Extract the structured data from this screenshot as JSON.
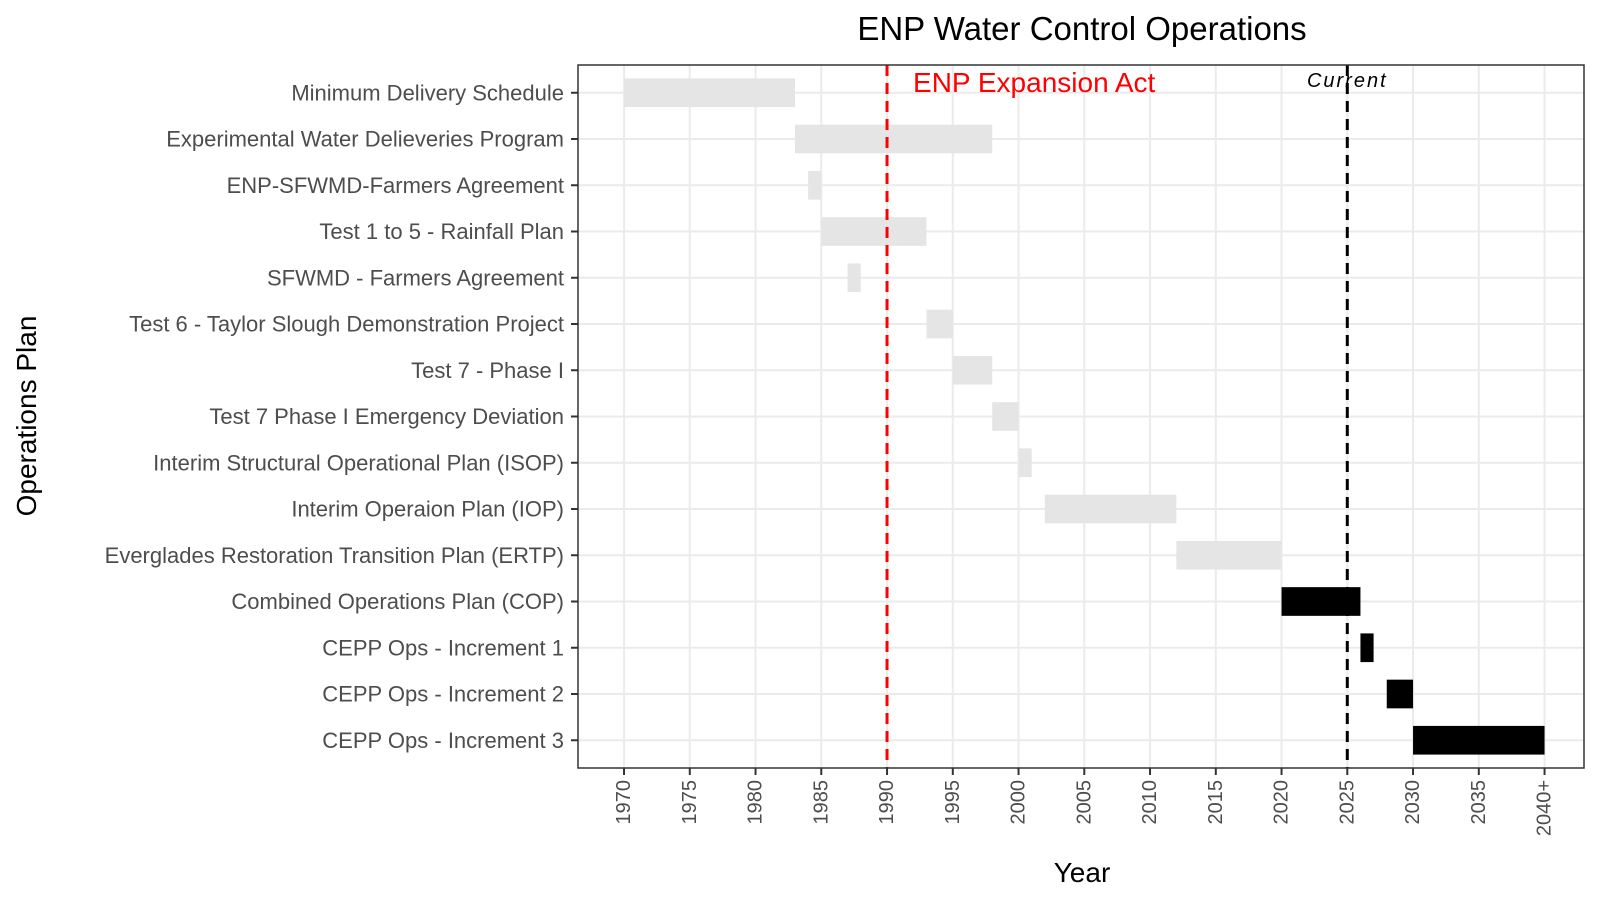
{
  "chart_data": {
    "type": "gantt",
    "title": "ENP Water Control Operations",
    "xlabel": "Year",
    "ylabel": "Operations Plan",
    "xlim": [
      1966.5,
      2043
    ],
    "x_ticks": [
      1970,
      1975,
      1980,
      1985,
      1990,
      1995,
      2000,
      2005,
      2010,
      2015,
      2020,
      2025,
      2030,
      2035,
      2040
    ],
    "x_tick_labels": [
      "1970",
      "1975",
      "1980",
      "1985",
      "1990",
      "1995",
      "2000",
      "2005",
      "2010",
      "2015",
      "2020",
      "2025",
      "2030",
      "2035",
      "2040+"
    ],
    "grid": true,
    "tasks": [
      {
        "label": "Minimum Delivery Schedule",
        "start": 1970,
        "end": 1983,
        "status": "past"
      },
      {
        "label": "Experimental Water Delieveries Program",
        "start": 1983,
        "end": 1998,
        "status": "past"
      },
      {
        "label": "ENP-SFWMD-Farmers Agreement",
        "start": 1984,
        "end": 1985,
        "status": "past"
      },
      {
        "label": "Test 1 to 5 - Rainfall Plan",
        "start": 1985,
        "end": 1993,
        "status": "past"
      },
      {
        "label": "SFWMD - Farmers Agreement",
        "start": 1987,
        "end": 1988,
        "status": "past"
      },
      {
        "label": "Test 6 - Taylor Slough Demonstration Project",
        "start": 1993,
        "end": 1995,
        "status": "past"
      },
      {
        "label": "Test 7 - Phase I",
        "start": 1995,
        "end": 1998,
        "status": "past"
      },
      {
        "label": "Test 7 Phase I Emergency Deviation",
        "start": 1998,
        "end": 2000,
        "status": "past"
      },
      {
        "label": "Interim Structural Operational Plan (ISOP)",
        "start": 2000,
        "end": 2001,
        "status": "past"
      },
      {
        "label": "Interim Operaion Plan (IOP)",
        "start": 2002,
        "end": 2012,
        "status": "past"
      },
      {
        "label": "Everglades Restoration Transition Plan (ERTP)",
        "start": 2012,
        "end": 2020,
        "status": "past"
      },
      {
        "label": "Combined Operations Plan (COP)",
        "start": 2020,
        "end": 2026,
        "status": "current"
      },
      {
        "label": "CEPP Ops - Increment 1",
        "start": 2026,
        "end": 2027,
        "status": "current"
      },
      {
        "label": "CEPP Ops - Increment 2",
        "start": 2028,
        "end": 2030,
        "status": "current"
      },
      {
        "label": "CEPP Ops - Increment 3",
        "start": 2030,
        "end": 2040,
        "status": "current"
      }
    ],
    "reference_lines": [
      {
        "x": 1990,
        "label": "ENP Expansion Act",
        "color": "#ff0000",
        "style": "dashed"
      },
      {
        "x": 2025,
        "label": "Current",
        "color": "#000000",
        "style": "dashed"
      }
    ],
    "colors": {
      "past": "#e5e5e5",
      "current": "#000000",
      "grid": "#ebebeb",
      "panel_border": "#333333"
    }
  }
}
